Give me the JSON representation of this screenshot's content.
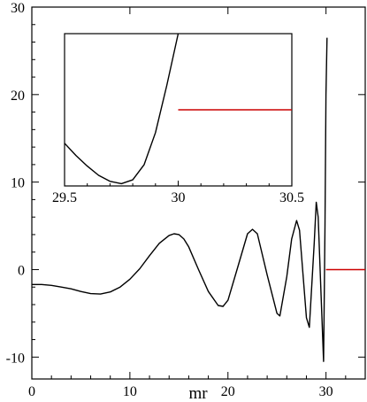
{
  "chart_data": [
    {
      "panel": "main",
      "type": "line",
      "title": "",
      "xlabel": "mr",
      "ylabel": "",
      "xlim": [
        0,
        34
      ],
      "ylim": [
        -12.5,
        30
      ],
      "xticks": [
        0,
        10,
        20,
        30
      ],
      "yticks": [
        30,
        20,
        10,
        0,
        -10
      ],
      "grid": false,
      "series": [
        {
          "color": "#000000",
          "x": [
            0,
            1,
            2,
            3,
            4,
            5,
            6,
            7,
            8,
            9,
            10,
            11,
            12,
            13,
            14,
            14.5,
            15,
            15.5,
            16,
            17,
            18,
            19,
            19.5,
            20,
            21,
            22,
            22.5,
            23,
            24,
            25,
            25.3,
            26,
            26.5,
            27,
            27.3,
            28,
            28.3,
            28.8,
            29,
            29.2,
            29.5,
            29.75,
            29.9,
            30.0,
            30.1
          ],
          "y": [
            -1.7,
            -1.7,
            -1.8,
            -2.0,
            -2.2,
            -2.5,
            -2.75,
            -2.8,
            -2.55,
            -2.0,
            -1.1,
            0.1,
            1.6,
            3.0,
            3.9,
            4.1,
            4.0,
            3.5,
            2.6,
            0.0,
            -2.5,
            -4.1,
            -4.2,
            -3.5,
            0.3,
            4.1,
            4.6,
            4.1,
            -0.6,
            -5.0,
            -5.3,
            -0.8,
            3.5,
            5.6,
            4.5,
            -5.5,
            -6.6,
            3.0,
            7.7,
            6.0,
            -3.0,
            -10.5,
            5.0,
            20.0,
            26.5
          ]
        },
        {
          "color": "#cc0000",
          "x": [
            30.0,
            34.0
          ],
          "y": [
            0,
            0
          ]
        }
      ]
    },
    {
      "panel": "inset",
      "type": "line",
      "title": "",
      "xlabel": "",
      "ylabel": "",
      "xlim": [
        29.5,
        30.5
      ],
      "xticks": [
        29.5,
        30,
        30.5
      ],
      "series": [
        {
          "color": "#000000",
          "x": [
            29.5,
            29.55,
            29.6,
            29.65,
            29.7,
            29.75,
            29.8,
            29.85,
            29.9,
            29.95,
            30.0
          ],
          "y": [
            0.72,
            0.8,
            0.87,
            0.93,
            0.97,
            0.985,
            0.96,
            0.86,
            0.65,
            0.34,
            0.0
          ]
        },
        {
          "color": "#cc0000",
          "x": [
            30.0,
            30.5
          ],
          "y": [
            0.5,
            0.5
          ]
        }
      ]
    }
  ]
}
